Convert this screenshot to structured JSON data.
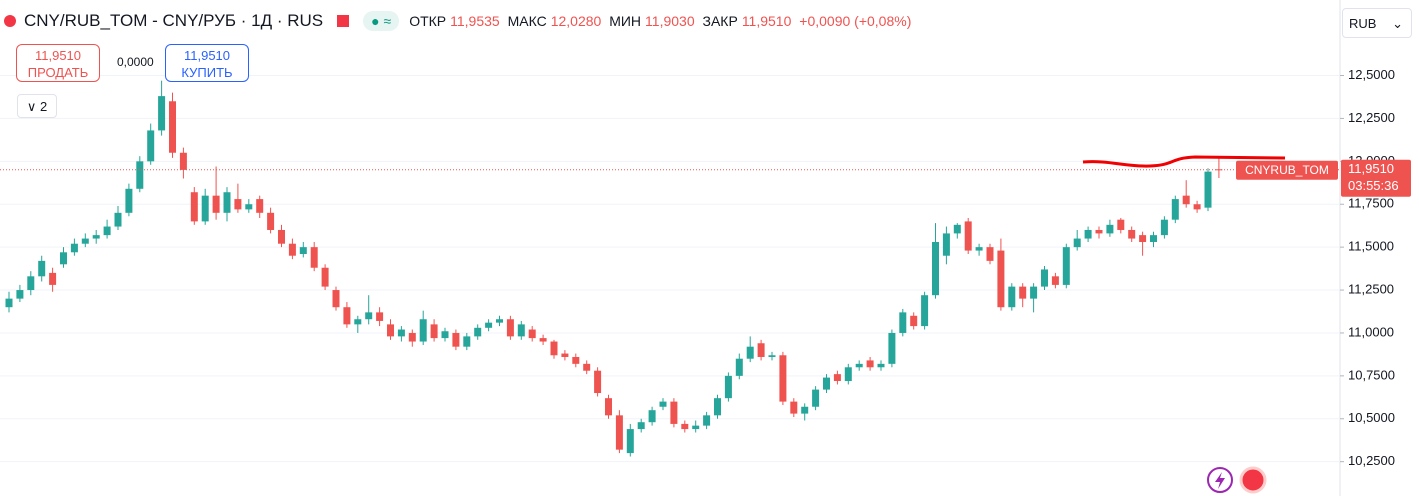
{
  "header": {
    "symbol": "CNY/RUB_TOM - CNY/РУБ · 1Д · RUS",
    "open_label": "ОТКР",
    "open": "11,9535",
    "high_label": "МАКС",
    "high": "12,0280",
    "low_label": "МИН",
    "low": "11,9030",
    "close_label": "ЗАКР",
    "close": "11,9510",
    "change": "+0,0090 (+0,08%)"
  },
  "trade": {
    "sell_price": "11,9510",
    "sell_label": "ПРОДАТЬ",
    "spread": "0,0000",
    "buy_price": "11,9510",
    "buy_label": "КУПИТЬ"
  },
  "indicators_toggle": "2",
  "currency": "RUB",
  "chart_data": {
    "type": "candlestick",
    "open": [
      11.15,
      11.2,
      11.25,
      11.33,
      11.35,
      11.4,
      11.47,
      11.52,
      11.55,
      11.57,
      11.62,
      11.7,
      11.84,
      12.0,
      12.18,
      12.35,
      12.05,
      11.82,
      11.65,
      11.8,
      11.7,
      11.78,
      11.72,
      11.78,
      11.7,
      11.6,
      11.52,
      11.46,
      11.5,
      11.38,
      11.25,
      11.15,
      11.05,
      11.08,
      11.12,
      11.05,
      10.98,
      11.0,
      10.95,
      11.05,
      10.97,
      11.0,
      10.92,
      10.98,
      11.03,
      11.06,
      11.08,
      10.98,
      11.02,
      10.97,
      10.95,
      10.88,
      10.86,
      10.82,
      10.78,
      10.62,
      10.52,
      10.3,
      10.44,
      10.48,
      10.57,
      10.6,
      10.47,
      10.44,
      10.46,
      10.52,
      10.62,
      10.75,
      10.85,
      10.94,
      10.86,
      10.87,
      10.6,
      10.53,
      10.57,
      10.67,
      10.76,
      10.72,
      10.8,
      10.84,
      10.8,
      10.82,
      11.0,
      11.1,
      11.04,
      11.22,
      11.45,
      11.58,
      11.65,
      11.48,
      11.5,
      11.48,
      11.15,
      11.27,
      11.2,
      11.27,
      11.33,
      11.28,
      11.5,
      11.55,
      11.6,
      11.58,
      11.66,
      11.6,
      11.57,
      11.53,
      11.57,
      11.66,
      11.8,
      11.75,
      11.73,
      11.9535
    ],
    "high": [
      11.24,
      11.28,
      11.36,
      11.45,
      11.38,
      11.5,
      11.55,
      11.58,
      11.6,
      11.66,
      11.74,
      11.87,
      12.03,
      12.22,
      12.47,
      12.4,
      12.08,
      11.85,
      11.84,
      11.97,
      11.85,
      11.87,
      11.78,
      11.8,
      11.73,
      11.63,
      11.55,
      11.53,
      11.53,
      11.4,
      11.27,
      11.18,
      11.1,
      11.22,
      11.15,
      11.08,
      11.04,
      11.02,
      11.13,
      11.08,
      11.03,
      11.02,
      11.0,
      11.05,
      11.08,
      11.1,
      11.1,
      11.07,
      11.04,
      10.99,
      10.96,
      10.9,
      10.88,
      10.84,
      10.8,
      10.64,
      10.55,
      10.47,
      10.5,
      10.57,
      10.62,
      10.62,
      10.49,
      10.49,
      10.54,
      10.64,
      10.77,
      10.88,
      10.98,
      10.96,
      10.89,
      10.89,
      10.62,
      10.59,
      10.69,
      10.76,
      10.78,
      10.82,
      10.84,
      10.86,
      10.84,
      11.02,
      11.14,
      11.12,
      11.24,
      11.64,
      11.62,
      11.64,
      11.67,
      11.52,
      11.52,
      11.55,
      11.29,
      11.29,
      11.29,
      11.39,
      11.35,
      11.52,
      11.6,
      11.62,
      11.62,
      11.66,
      11.67,
      11.62,
      11.59,
      11.59,
      11.68,
      11.8,
      11.89,
      11.77,
      11.96,
      12.028
    ],
    "low": [
      11.12,
      11.18,
      11.22,
      11.3,
      11.24,
      11.38,
      11.45,
      11.5,
      11.52,
      11.55,
      11.6,
      11.68,
      11.82,
      11.98,
      12.15,
      12.02,
      11.9,
      11.63,
      11.63,
      11.66,
      11.65,
      11.7,
      11.7,
      11.67,
      11.58,
      11.5,
      11.43,
      11.44,
      11.36,
      11.25,
      11.13,
      11.03,
      11.0,
      11.05,
      11.04,
      10.96,
      10.95,
      10.92,
      10.93,
      10.95,
      10.95,
      10.9,
      10.9,
      10.96,
      11.01,
      11.04,
      10.96,
      10.96,
      10.95,
      10.93,
      10.85,
      10.84,
      10.8,
      10.76,
      10.63,
      10.5,
      10.3,
      10.28,
      10.42,
      10.46,
      10.55,
      10.45,
      10.42,
      10.42,
      10.44,
      10.5,
      10.6,
      10.73,
      10.83,
      10.84,
      10.84,
      10.58,
      10.51,
      10.49,
      10.55,
      10.65,
      10.7,
      10.7,
      10.78,
      10.78,
      10.78,
      10.8,
      10.98,
      11.02,
      11.02,
      11.2,
      11.4,
      11.55,
      11.46,
      11.45,
      11.4,
      11.13,
      11.13,
      11.15,
      11.12,
      11.25,
      11.26,
      11.26,
      11.48,
      11.53,
      11.55,
      11.56,
      11.58,
      11.53,
      11.45,
      11.5,
      11.55,
      11.64,
      11.73,
      11.7,
      11.71,
      11.903
    ],
    "close": [
      11.2,
      11.25,
      11.33,
      11.42,
      11.28,
      11.47,
      11.52,
      11.55,
      11.57,
      11.62,
      11.7,
      11.84,
      12.0,
      12.18,
      12.38,
      12.05,
      11.95,
      11.65,
      11.8,
      11.7,
      11.82,
      11.72,
      11.75,
      11.7,
      11.6,
      11.52,
      11.45,
      11.5,
      11.38,
      11.27,
      11.15,
      11.05,
      11.08,
      11.12,
      11.07,
      10.98,
      11.02,
      10.95,
      11.08,
      10.97,
      11.01,
      10.92,
      10.98,
      11.03,
      11.06,
      11.08,
      10.98,
      11.05,
      10.97,
      10.95,
      10.87,
      10.86,
      10.82,
      10.78,
      10.65,
      10.52,
      10.32,
      10.44,
      10.48,
      10.55,
      10.6,
      10.47,
      10.44,
      10.46,
      10.52,
      10.62,
      10.75,
      10.85,
      10.92,
      10.86,
      10.87,
      10.6,
      10.53,
      10.57,
      10.67,
      10.74,
      10.72,
      10.8,
      10.82,
      10.8,
      10.82,
      11.0,
      11.12,
      11.04,
      11.22,
      11.53,
      11.58,
      11.63,
      11.48,
      11.5,
      11.42,
      11.15,
      11.27,
      11.2,
      11.27,
      11.37,
      11.28,
      11.5,
      11.55,
      11.6,
      11.58,
      11.63,
      11.6,
      11.55,
      11.53,
      11.57,
      11.66,
      11.78,
      11.75,
      11.72,
      11.94,
      11.951
    ],
    "up_color": "#26a69a",
    "down_color": "#ef5350",
    "ylim": [
      10.05,
      12.94
    ],
    "yticks": [
      {
        "value": 10.25,
        "label": "10,2500"
      },
      {
        "value": 10.5,
        "label": "10,5000"
      },
      {
        "value": 10.75,
        "label": "10,7500"
      },
      {
        "value": 11,
        "label": "11,0000"
      },
      {
        "value": 11.25,
        "label": "11,2500"
      },
      {
        "value": 11.5,
        "label": "11,5000"
      },
      {
        "value": 11.75,
        "label": "11,7500"
      },
      {
        "value": 12,
        "label": "12,0000"
      },
      {
        "value": 12.25,
        "label": "12,2500"
      },
      {
        "value": 12.5,
        "label": "12,5000"
      }
    ],
    "grid": true,
    "last_price": {
      "symbol": "CNYRUB_TOM",
      "price": "11,9510",
      "countdown": "03:55:36"
    }
  }
}
